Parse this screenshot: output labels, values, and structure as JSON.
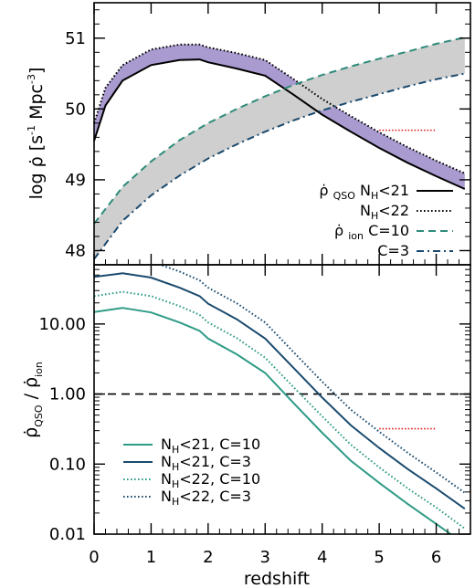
{
  "chart_data": [
    {
      "type": "line",
      "ylabel": "log ρ̇ [s⁻¹ Mpc⁻³]",
      "xlim": [
        0,
        6.6
      ],
      "ylim": [
        47.8,
        51.5
      ],
      "yticks": [
        "48",
        "49",
        "50",
        "51"
      ],
      "series": [
        {
          "name": "ρ̇QSO NH<21",
          "color": "#000000",
          "style": "solid",
          "x": [
            0,
            0.2,
            0.5,
            1.0,
            1.5,
            1.85,
            2.0,
            2.5,
            3.0,
            3.5,
            4.0,
            4.5,
            5.0,
            5.5,
            6.0,
            6.5
          ],
          "y": [
            49.55,
            50.05,
            50.4,
            50.62,
            50.69,
            50.7,
            50.66,
            50.57,
            50.47,
            50.2,
            49.92,
            49.68,
            49.45,
            49.24,
            49.05,
            48.87
          ]
        },
        {
          "name": "NH<22",
          "color": "#000000",
          "style": "dotted",
          "x": [
            0,
            0.2,
            0.5,
            1.0,
            1.5,
            1.85,
            2.0,
            2.5,
            3.0,
            3.5,
            4.0,
            4.5,
            5.0,
            5.5,
            6.0,
            6.5
          ],
          "y": [
            49.8,
            50.3,
            50.62,
            50.84,
            50.91,
            50.91,
            50.87,
            50.79,
            50.69,
            50.42,
            50.14,
            49.9,
            49.67,
            49.46,
            49.27,
            49.09
          ]
        },
        {
          "name": "ρ̇ion C=10",
          "color": "#2e8b7a",
          "style": "dashed",
          "x": [
            0,
            0.5,
            1.0,
            1.5,
            2.0,
            2.5,
            3.0,
            3.5,
            4.0,
            4.5,
            5.0,
            5.5,
            6.0,
            6.5
          ],
          "y": [
            48.38,
            48.9,
            49.26,
            49.56,
            49.8,
            50.0,
            50.18,
            50.34,
            50.48,
            50.6,
            50.71,
            50.81,
            50.92,
            51.01
          ]
        },
        {
          "name": "C=3",
          "color": "#1a4a6e",
          "style": "dashdot",
          "x": [
            0,
            0.5,
            1.0,
            1.5,
            2.0,
            2.5,
            3.0,
            3.5,
            4.0,
            4.5,
            5.0,
            5.5,
            6.0,
            6.5
          ],
          "y": [
            47.88,
            48.42,
            48.78,
            49.06,
            49.3,
            49.5,
            49.68,
            49.84,
            49.98,
            50.1,
            50.21,
            50.32,
            50.42,
            50.5
          ]
        }
      ],
      "reference_segment": {
        "x": [
          5.0,
          6.0
        ],
        "y": 49.7,
        "color": "#e01010"
      }
    },
    {
      "type": "line",
      "xlabel": "redshift",
      "ylabel": "ρ̇QSO / ρ̇ion",
      "xlim": [
        0,
        6.6
      ],
      "ylim": [
        0.01,
        70
      ],
      "yscale": "log",
      "xticks": [
        "0",
        "1",
        "2",
        "3",
        "4",
        "5",
        "6"
      ],
      "yticks": [
        "0.01",
        "0.10",
        "1.00",
        "10.00"
      ],
      "series": [
        {
          "name": "NH<21, C=10",
          "color": "#2e9b85",
          "style": "solid",
          "x": [
            0,
            0.5,
            1.0,
            1.5,
            1.85,
            2.0,
            2.5,
            3.0,
            3.5,
            4.0,
            4.5,
            5.0,
            5.5,
            6.0,
            6.5
          ],
          "y": [
            14.8,
            17.0,
            14.6,
            10.5,
            8.0,
            6.2,
            3.7,
            2.0,
            0.74,
            0.28,
            0.112,
            0.054,
            0.027,
            0.014,
            0.0072
          ]
        },
        {
          "name": "NH<21, C=3",
          "color": "#1a4a6e",
          "style": "solid",
          "x": [
            0,
            0.5,
            1.0,
            1.5,
            1.85,
            2.0,
            2.5,
            3.0,
            3.5,
            4.0,
            4.5,
            5.0,
            5.5,
            6.0,
            6.5
          ],
          "y": [
            47.0,
            53.0,
            46.0,
            33.0,
            25.0,
            19.5,
            11.7,
            6.2,
            2.35,
            0.89,
            0.36,
            0.17,
            0.085,
            0.045,
            0.023
          ]
        },
        {
          "name": "NH<22, C=10",
          "color": "#2e9b85",
          "style": "dotted",
          "x": [
            0,
            0.5,
            1.0,
            1.5,
            1.85,
            2.0,
            2.5,
            3.0,
            3.5,
            4.0,
            4.5,
            5.0,
            5.5,
            6.0,
            6.5
          ],
          "y": [
            25.0,
            28.8,
            25.0,
            18.0,
            13.5,
            10.5,
            6.3,
            3.3,
            1.25,
            0.48,
            0.19,
            0.09,
            0.045,
            0.024,
            0.012
          ]
        },
        {
          "name": "NH<22, C=3",
          "color": "#1a4a6e",
          "style": "dotted",
          "x": [
            0,
            0.5,
            1.0,
            1.5,
            1.85,
            2.0,
            2.5,
            3.0,
            3.5,
            4.0,
            4.5,
            5.0,
            5.5,
            6.0,
            6.5
          ],
          "y": [
            79.0,
            90.0,
            78.0,
            56.0,
            42.0,
            33.0,
            19.8,
            10.5,
            3.95,
            1.5,
            0.6,
            0.29,
            0.145,
            0.076,
            0.039
          ]
        }
      ],
      "reference_line": {
        "y": 1.0,
        "style": "dashed",
        "color": "#000000"
      },
      "reference_segment": {
        "x": [
          5.0,
          6.0
        ],
        "y": 0.32,
        "color": "#e01010"
      }
    }
  ],
  "legend_top": [
    {
      "prefix": "ρ̇",
      "prefix_sub": "QSO",
      "main": "N",
      "main_sub": "H",
      "tail": "<21"
    },
    {
      "prefix": "",
      "prefix_sub": "",
      "main": "N",
      "main_sub": "H",
      "tail": "<22"
    },
    {
      "prefix": "ρ̇",
      "prefix_sub": "ion",
      "main": "C=10",
      "main_sub": "",
      "tail": ""
    },
    {
      "prefix": "",
      "prefix_sub": "",
      "main": "C=3",
      "main_sub": "",
      "tail": ""
    }
  ],
  "legend_bottom": [
    {
      "main": "N",
      "main_sub": "H",
      "tail": "<21, C=10"
    },
    {
      "main": "N",
      "main_sub": "H",
      "tail": "<21, C=3"
    },
    {
      "main": "N",
      "main_sub": "H",
      "tail": "<22, C=10"
    },
    {
      "main": "N",
      "main_sub": "H",
      "tail": "<22, C=3"
    }
  ],
  "colors": {
    "band_qso": "#a99bcf",
    "band_ion": "#cfcfcf",
    "teal": "#2e9b85",
    "navy": "#1a4a6e",
    "red": "#e01010"
  }
}
